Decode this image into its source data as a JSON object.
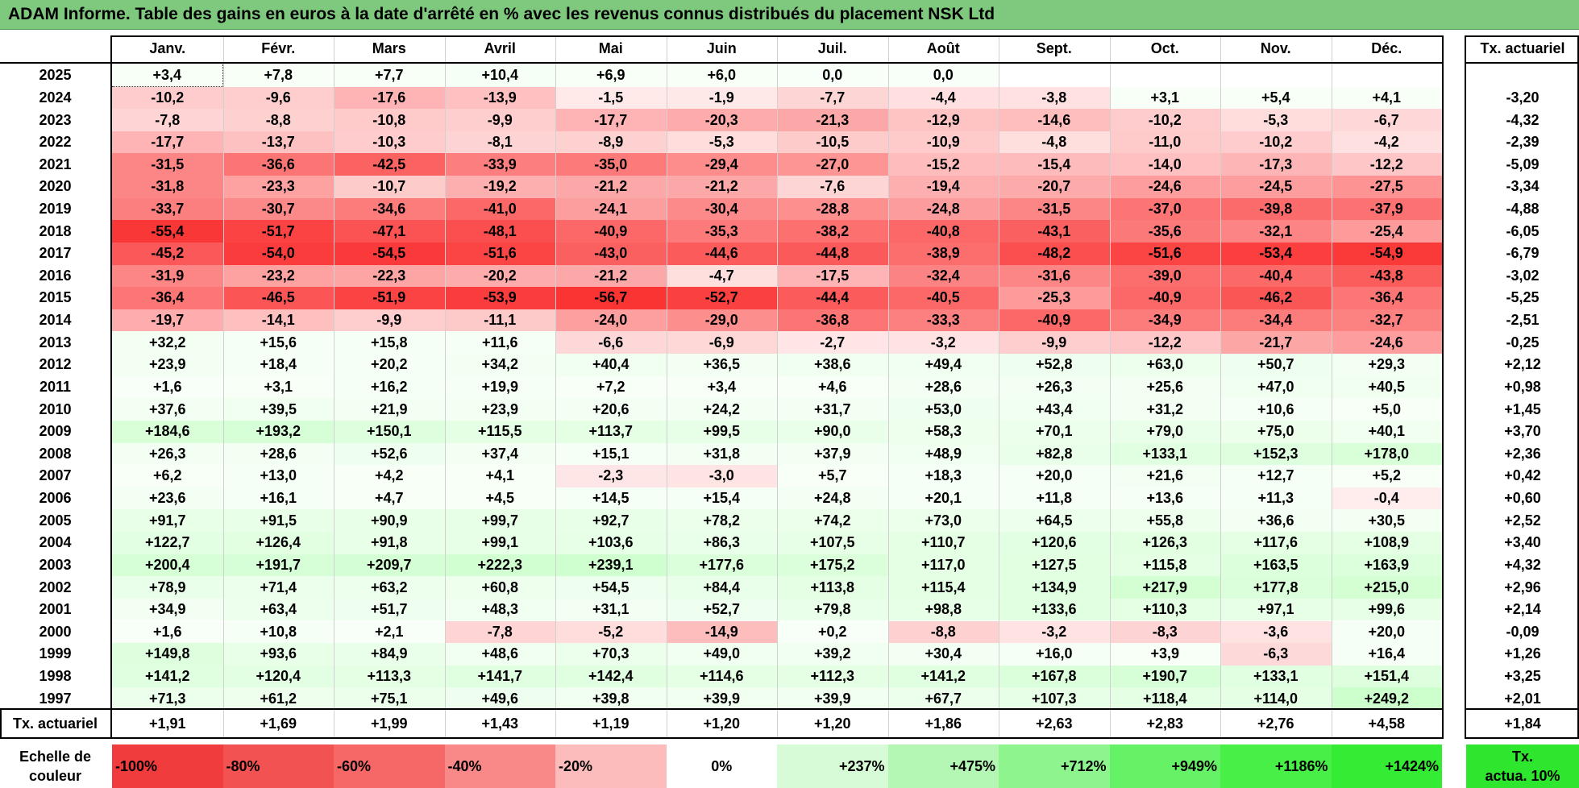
{
  "title": "ADAM Informe. Table des gains en euros à la date d'arrêté en % avec les revenus connus distribués du placement NSK Ltd",
  "chart_data": {
    "type": "table",
    "columns": [
      "Janv.",
      "Févr.",
      "Mars",
      "Avril",
      "Mai",
      "Juin",
      "Juil.",
      "Août",
      "Sept.",
      "Oct.",
      "Nov.",
      "Déc."
    ],
    "rate_header": "Tx. actuariel",
    "rows": [
      {
        "year": "2025",
        "values": [
          "+3,4",
          "+7,8",
          "+7,7",
          "+10,4",
          "+6,9",
          "+6,0",
          "0,0",
          "0,0",
          "",
          "",
          "",
          ""
        ],
        "rate": ""
      },
      {
        "year": "2024",
        "values": [
          "-10,2",
          "-9,6",
          "-17,6",
          "-13,9",
          "-1,5",
          "-1,9",
          "-7,7",
          "-4,4",
          "-3,8",
          "+3,1",
          "+5,4",
          "+4,1"
        ],
        "rate": "-3,20"
      },
      {
        "year": "2023",
        "values": [
          "-7,8",
          "-8,8",
          "-10,8",
          "-9,9",
          "-17,7",
          "-20,3",
          "-21,3",
          "-12,9",
          "-14,6",
          "-10,2",
          "-5,3",
          "-6,7"
        ],
        "rate": "-4,32"
      },
      {
        "year": "2022",
        "values": [
          "-17,7",
          "-13,7",
          "-10,3",
          "-8,1",
          "-8,9",
          "-5,3",
          "-10,5",
          "-10,9",
          "-4,8",
          "-11,0",
          "-10,2",
          "-4,2"
        ],
        "rate": "-2,39"
      },
      {
        "year": "2021",
        "values": [
          "-31,5",
          "-36,6",
          "-42,5",
          "-33,9",
          "-35,0",
          "-29,4",
          "-27,0",
          "-15,2",
          "-15,4",
          "-14,0",
          "-17,3",
          "-12,2"
        ],
        "rate": "-5,09"
      },
      {
        "year": "2020",
        "values": [
          "-31,8",
          "-23,3",
          "-10,7",
          "-19,2",
          "-21,2",
          "-21,2",
          "-7,6",
          "-19,4",
          "-20,7",
          "-24,6",
          "-24,5",
          "-27,5"
        ],
        "rate": "-3,34"
      },
      {
        "year": "2019",
        "values": [
          "-33,7",
          "-30,7",
          "-34,6",
          "-41,0",
          "-24,1",
          "-30,4",
          "-28,8",
          "-24,8",
          "-31,5",
          "-37,0",
          "-39,8",
          "-37,9"
        ],
        "rate": "-4,88"
      },
      {
        "year": "2018",
        "values": [
          "-55,4",
          "-51,7",
          "-47,1",
          "-48,1",
          "-40,9",
          "-35,3",
          "-38,2",
          "-40,8",
          "-43,1",
          "-35,6",
          "-32,1",
          "-25,4"
        ],
        "rate": "-6,05"
      },
      {
        "year": "2017",
        "values": [
          "-45,2",
          "-54,0",
          "-54,5",
          "-51,6",
          "-43,0",
          "-44,6",
          "-44,8",
          "-38,9",
          "-48,2",
          "-51,6",
          "-53,4",
          "-54,9"
        ],
        "rate": "-6,79"
      },
      {
        "year": "2016",
        "values": [
          "-31,9",
          "-23,2",
          "-22,3",
          "-20,2",
          "-21,2",
          "-4,7",
          "-17,5",
          "-32,4",
          "-31,6",
          "-39,0",
          "-40,4",
          "-43,8"
        ],
        "rate": "-3,02"
      },
      {
        "year": "2015",
        "values": [
          "-36,4",
          "-46,5",
          "-51,9",
          "-53,9",
          "-56,7",
          "-52,7",
          "-44,4",
          "-40,5",
          "-25,3",
          "-40,9",
          "-46,2",
          "-36,4"
        ],
        "rate": "-5,25"
      },
      {
        "year": "2014",
        "values": [
          "-19,7",
          "-14,1",
          "-9,9",
          "-11,1",
          "-24,0",
          "-29,0",
          "-36,8",
          "-33,3",
          "-40,9",
          "-34,9",
          "-34,4",
          "-32,7"
        ],
        "rate": "-2,51"
      },
      {
        "year": "2013",
        "values": [
          "+32,2",
          "+15,6",
          "+15,8",
          "+11,6",
          "-6,6",
          "-6,9",
          "-2,7",
          "-3,2",
          "-9,9",
          "-12,2",
          "-21,7",
          "-24,6"
        ],
        "rate": "-0,25"
      },
      {
        "year": "2012",
        "values": [
          "+23,9",
          "+18,4",
          "+20,2",
          "+34,2",
          "+40,4",
          "+36,5",
          "+38,6",
          "+49,4",
          "+52,8",
          "+63,0",
          "+50,7",
          "+29,3"
        ],
        "rate": "+2,12"
      },
      {
        "year": "2011",
        "values": [
          "+1,6",
          "+3,1",
          "+16,2",
          "+19,9",
          "+7,2",
          "+3,4",
          "+4,6",
          "+28,6",
          "+26,3",
          "+25,6",
          "+47,0",
          "+40,5"
        ],
        "rate": "+0,98"
      },
      {
        "year": "2010",
        "values": [
          "+37,6",
          "+39,5",
          "+21,9",
          "+23,9",
          "+20,6",
          "+24,2",
          "+31,7",
          "+53,0",
          "+43,4",
          "+31,2",
          "+10,6",
          "+5,0"
        ],
        "rate": "+1,45"
      },
      {
        "year": "2009",
        "values": [
          "+184,6",
          "+193,2",
          "+150,1",
          "+115,5",
          "+113,7",
          "+99,5",
          "+90,0",
          "+58,3",
          "+70,1",
          "+79,0",
          "+75,0",
          "+40,1"
        ],
        "rate": "+3,70"
      },
      {
        "year": "2008",
        "values": [
          "+26,3",
          "+28,6",
          "+52,6",
          "+37,4",
          "+15,1",
          "+31,8",
          "+37,9",
          "+48,9",
          "+82,8",
          "+133,1",
          "+152,3",
          "+178,0"
        ],
        "rate": "+2,36"
      },
      {
        "year": "2007",
        "values": [
          "+6,2",
          "+13,0",
          "+4,2",
          "+4,1",
          "-2,3",
          "-3,0",
          "+5,7",
          "+18,3",
          "+20,0",
          "+21,6",
          "+12,7",
          "+5,2"
        ],
        "rate": "+0,42"
      },
      {
        "year": "2006",
        "values": [
          "+23,6",
          "+16,1",
          "+4,7",
          "+4,5",
          "+14,5",
          "+15,4",
          "+24,8",
          "+20,1",
          "+11,8",
          "+13,6",
          "+11,3",
          "-0,4"
        ],
        "rate": "+0,60"
      },
      {
        "year": "2005",
        "values": [
          "+91,7",
          "+91,5",
          "+90,9",
          "+99,7",
          "+92,7",
          "+78,2",
          "+74,2",
          "+73,0",
          "+64,5",
          "+55,8",
          "+36,6",
          "+30,5"
        ],
        "rate": "+2,52"
      },
      {
        "year": "2004",
        "values": [
          "+122,7",
          "+126,4",
          "+91,8",
          "+99,1",
          "+103,6",
          "+86,3",
          "+107,5",
          "+110,7",
          "+120,6",
          "+126,3",
          "+117,6",
          "+108,9"
        ],
        "rate": "+3,40"
      },
      {
        "year": "2003",
        "values": [
          "+200,4",
          "+191,7",
          "+209,7",
          "+222,3",
          "+239,1",
          "+177,6",
          "+175,2",
          "+117,0",
          "+127,5",
          "+115,8",
          "+163,5",
          "+163,9"
        ],
        "rate": "+4,32"
      },
      {
        "year": "2002",
        "values": [
          "+78,9",
          "+71,4",
          "+63,2",
          "+60,8",
          "+54,5",
          "+84,4",
          "+113,8",
          "+115,4",
          "+134,9",
          "+217,9",
          "+177,8",
          "+215,0"
        ],
        "rate": "+2,96"
      },
      {
        "year": "2001",
        "values": [
          "+34,9",
          "+63,4",
          "+51,7",
          "+48,3",
          "+31,1",
          "+52,7",
          "+79,8",
          "+98,8",
          "+133,6",
          "+110,3",
          "+97,1",
          "+99,6"
        ],
        "rate": "+2,14"
      },
      {
        "year": "2000",
        "values": [
          "+1,6",
          "+10,8",
          "+2,1",
          "-7,8",
          "-5,2",
          "-14,9",
          "+0,2",
          "-8,8",
          "-3,2",
          "-8,3",
          "-3,6",
          "+20,0"
        ],
        "rate": "-0,09"
      },
      {
        "year": "1999",
        "values": [
          "+149,8",
          "+93,6",
          "+84,9",
          "+48,6",
          "+70,3",
          "+49,0",
          "+39,2",
          "+30,4",
          "+16,0",
          "+3,9",
          "-6,3",
          "+16,4"
        ],
        "rate": "+1,26"
      },
      {
        "year": "1998",
        "values": [
          "+141,2",
          "+120,4",
          "+113,3",
          "+141,7",
          "+142,4",
          "+114,6",
          "+112,3",
          "+141,2",
          "+167,8",
          "+190,7",
          "+133,1",
          "+151,4"
        ],
        "rate": "+3,25"
      },
      {
        "year": "1997",
        "values": [
          "+71,3",
          "+61,2",
          "+75,1",
          "+49,6",
          "+39,8",
          "+39,9",
          "+39,9",
          "+67,7",
          "+107,3",
          "+118,4",
          "+114,0",
          "+249,2"
        ],
        "rate": "+2,01"
      }
    ],
    "footer_row": {
      "label": "Tx. actuariel",
      "values": [
        "+1,91",
        "+1,69",
        "+1,99",
        "+1,43",
        "+1,19",
        "+1,20",
        "+1,20",
        "+1,86",
        "+2,63",
        "+2,83",
        "+2,76",
        "+4,58"
      ],
      "rate": "+1,84"
    },
    "scale": {
      "label_line1": "Echelle de",
      "label_line2": "couleur",
      "items": [
        {
          "label": "-100%",
          "color": "#f03c3c"
        },
        {
          "label": "-80%",
          "color": "#f35252"
        },
        {
          "label": "-60%",
          "color": "#f66868"
        },
        {
          "label": "-40%",
          "color": "#f98888"
        },
        {
          "label": "-20%",
          "color": "#fcbcbc"
        },
        {
          "label": "0%",
          "color": "#ffffff"
        },
        {
          "label": "+237%",
          "color": "#d7fad7"
        },
        {
          "label": "+475%",
          "color": "#b4f7b4"
        },
        {
          "label": "+712%",
          "color": "#8ef58e"
        },
        {
          "label": "+949%",
          "color": "#66f266"
        },
        {
          "label": "+1186%",
          "color": "#47ef47"
        },
        {
          "label": "+1424%",
          "color": "#33ec33"
        }
      ],
      "legend_line1": "Tx.",
      "legend_line2": "actua. 10%",
      "legend_color": "#2ee62e"
    }
  }
}
